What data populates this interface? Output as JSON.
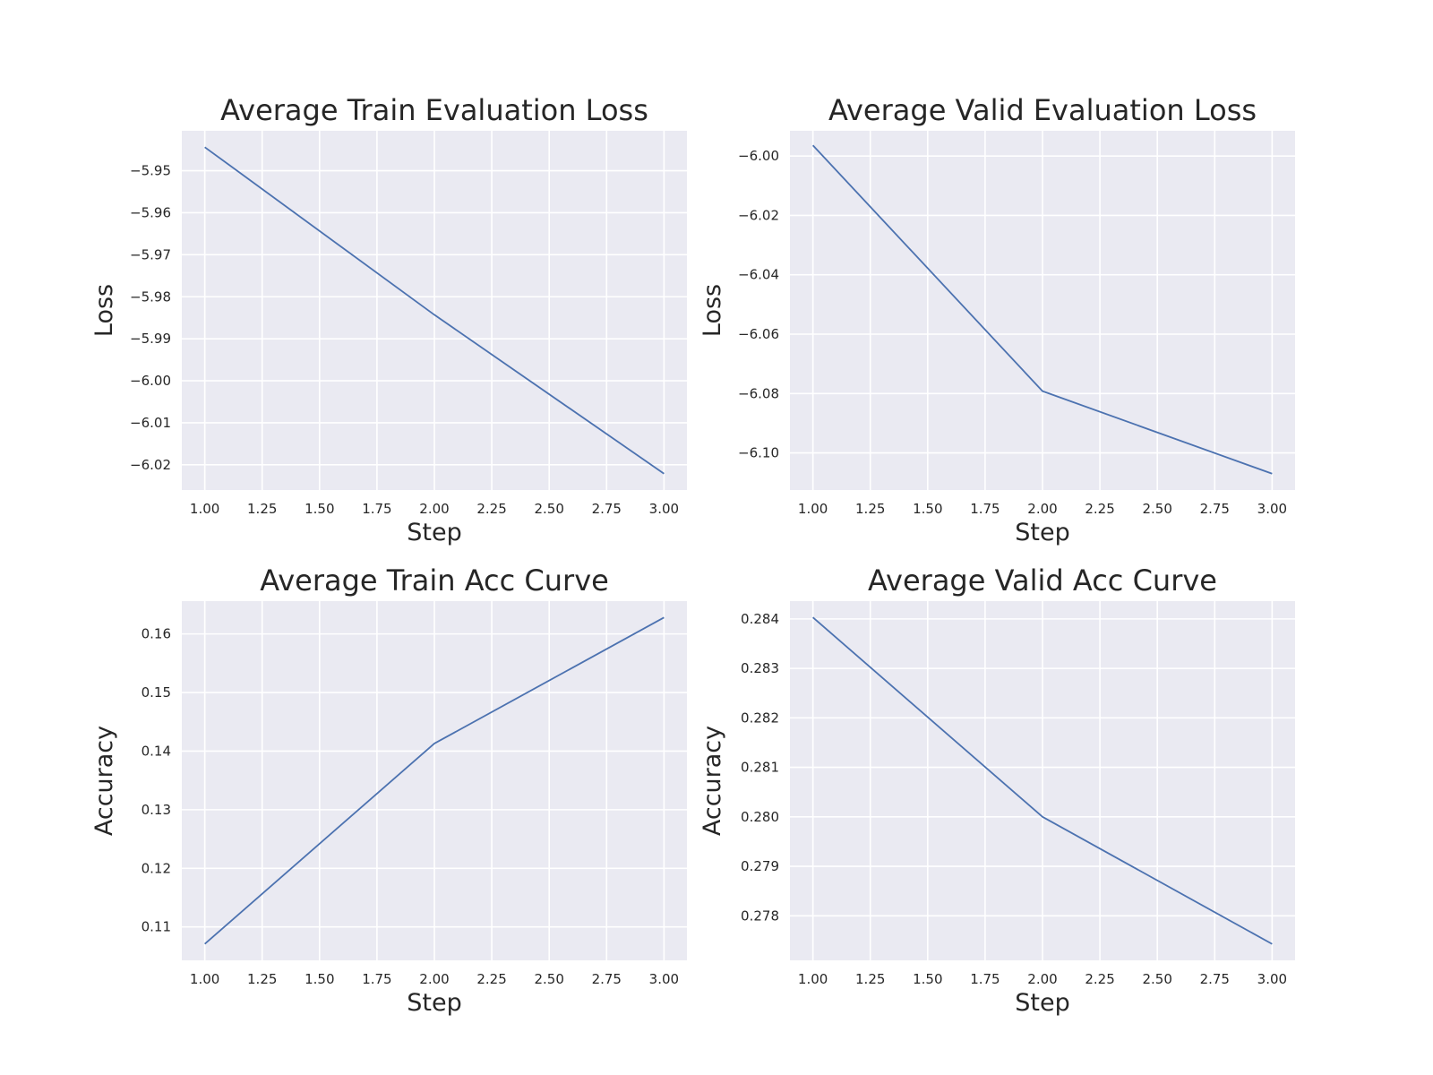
{
  "colors": {
    "line": "#4c72b0",
    "plot_background": "#eaeaf2",
    "grid": "#ffffff",
    "text": "#262626"
  },
  "chart_data": [
    {
      "type": "line",
      "title": "Average Train Evaluation Loss",
      "xlabel": "Step",
      "ylabel": "Loss",
      "x": [
        1,
        2,
        3
      ],
      "series": [
        {
          "values": [
            -5.9444,
            -5.9843,
            -6.0221
          ]
        }
      ],
      "xlim": [
        0.9,
        3.1
      ],
      "ylim": [
        -6.026,
        -5.9405
      ],
      "xticks": [
        1.0,
        1.25,
        1.5,
        1.75,
        2.0,
        2.25,
        2.5,
        2.75,
        3.0
      ],
      "xtick_labels": [
        "1.00",
        "1.25",
        "1.50",
        "1.75",
        "2.00",
        "2.25",
        "2.50",
        "2.75",
        "3.00"
      ],
      "yticks": [
        -5.95,
        -5.96,
        -5.97,
        -5.98,
        -5.99,
        -6.0,
        -6.01,
        -6.02
      ],
      "ytick_labels": [
        "−5.95",
        "−5.96",
        "−5.97",
        "−5.98",
        "−5.99",
        "−6.00",
        "−6.01",
        "−6.02"
      ],
      "grid": true
    },
    {
      "type": "line",
      "title": "Average Valid Evaluation Loss",
      "xlabel": "Step",
      "ylabel": "Loss",
      "x": [
        1,
        2,
        3
      ],
      "series": [
        {
          "values": [
            -5.9964,
            -6.0792,
            -6.107
          ]
        }
      ],
      "xlim": [
        0.9,
        3.1
      ],
      "ylim": [
        -6.1125,
        -5.9915
      ],
      "xticks": [
        1.0,
        1.25,
        1.5,
        1.75,
        2.0,
        2.25,
        2.5,
        2.75,
        3.0
      ],
      "xtick_labels": [
        "1.00",
        "1.25",
        "1.50",
        "1.75",
        "2.00",
        "2.25",
        "2.50",
        "2.75",
        "3.00"
      ],
      "yticks": [
        -6.0,
        -6.02,
        -6.04,
        -6.06,
        -6.08,
        -6.1
      ],
      "ytick_labels": [
        "−6.00",
        "−6.02",
        "−6.04",
        "−6.06",
        "−6.08",
        "−6.10"
      ],
      "grid": true
    },
    {
      "type": "line",
      "title": "Average Train Acc Curve",
      "xlabel": "Step",
      "ylabel": "Accuracy",
      "x": [
        1,
        2,
        3
      ],
      "series": [
        {
          "values": [
            0.1071,
            0.1413,
            0.1628
          ]
        }
      ],
      "xlim": [
        0.9,
        3.1
      ],
      "ylim": [
        0.1043,
        0.1656
      ],
      "xticks": [
        1.0,
        1.25,
        1.5,
        1.75,
        2.0,
        2.25,
        2.5,
        2.75,
        3.0
      ],
      "xtick_labels": [
        "1.00",
        "1.25",
        "1.50",
        "1.75",
        "2.00",
        "2.25",
        "2.50",
        "2.75",
        "3.00"
      ],
      "yticks": [
        0.11,
        0.12,
        0.13,
        0.14,
        0.15,
        0.16
      ],
      "ytick_labels": [
        "0.11",
        "0.12",
        "0.13",
        "0.14",
        "0.15",
        "0.16"
      ],
      "grid": true
    },
    {
      "type": "line",
      "title": "Average Valid Acc Curve",
      "xlabel": "Step",
      "ylabel": "Accuracy",
      "x": [
        1,
        2,
        3
      ],
      "series": [
        {
          "values": [
            0.28403,
            0.28,
            0.27743
          ]
        }
      ],
      "xlim": [
        0.9,
        3.1
      ],
      "ylim": [
        0.2771,
        0.28436
      ],
      "xticks": [
        1.0,
        1.25,
        1.5,
        1.75,
        2.0,
        2.25,
        2.5,
        2.75,
        3.0
      ],
      "xtick_labels": [
        "1.00",
        "1.25",
        "1.50",
        "1.75",
        "2.00",
        "2.25",
        "2.50",
        "2.75",
        "3.00"
      ],
      "yticks": [
        0.278,
        0.279,
        0.28,
        0.281,
        0.282,
        0.283,
        0.284
      ],
      "ytick_labels": [
        "0.278",
        "0.279",
        "0.280",
        "0.281",
        "0.282",
        "0.283",
        "0.284"
      ],
      "grid": true
    }
  ]
}
